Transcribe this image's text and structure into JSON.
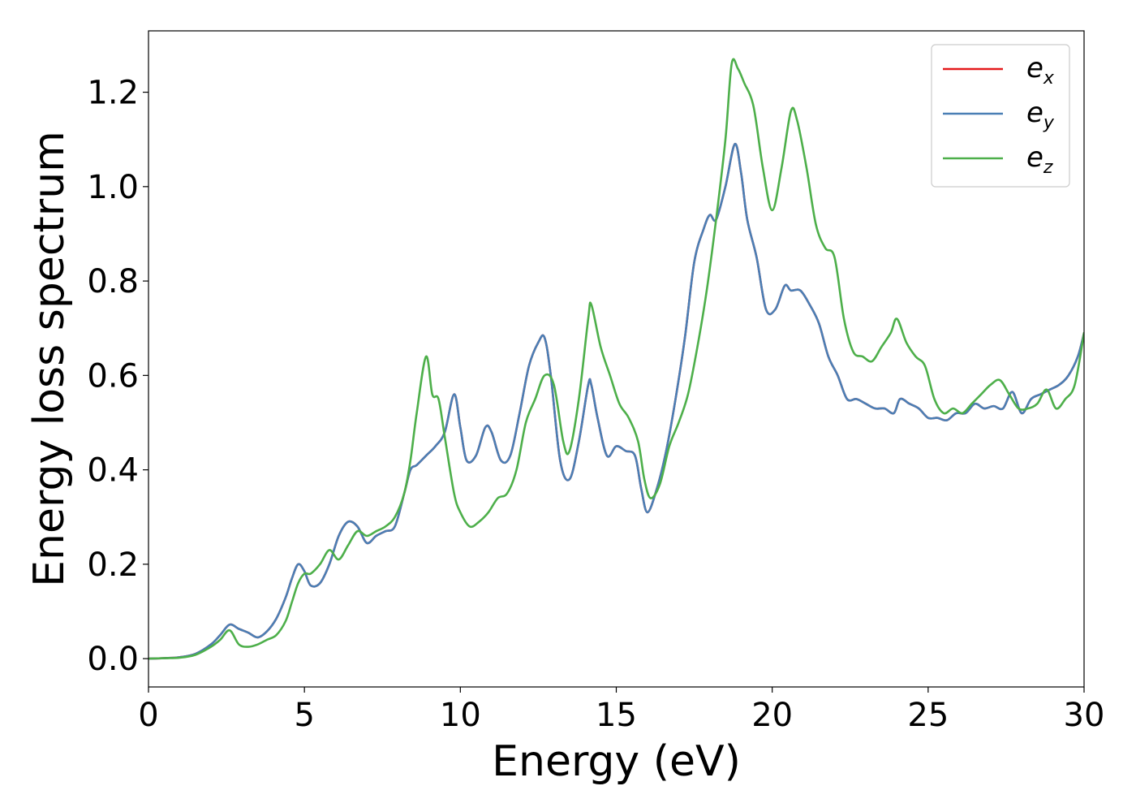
{
  "chart_data": {
    "type": "line",
    "title": "",
    "xlabel": "Energy (eV)",
    "ylabel": "Energy loss spectrum",
    "xlim": [
      0,
      30
    ],
    "ylim": [
      -0.06,
      1.33
    ],
    "xticks": [
      0,
      5,
      10,
      15,
      20,
      25,
      30
    ],
    "yticks": [
      0.0,
      0.2,
      0.4,
      0.6,
      0.8,
      1.0,
      1.2
    ],
    "xtick_labels": [
      "0",
      "5",
      "10",
      "15",
      "20",
      "25",
      "30"
    ],
    "ytick_labels": [
      "0.0",
      "0.2",
      "0.4",
      "0.6",
      "0.8",
      "1.0",
      "1.2"
    ],
    "grid": false,
    "legend_position": "top-right",
    "series": [
      {
        "name": "e_x",
        "legend_base": "e",
        "legend_sub": "x",
        "color": "#e41a1c",
        "x": [
          0,
          0.5,
          1.0,
          1.5,
          2.0,
          2.3,
          2.6,
          2.9,
          3.2,
          3.5,
          3.8,
          4.1,
          4.4,
          4.6,
          4.8,
          5.0,
          5.2,
          5.5,
          5.8,
          6.1,
          6.4,
          6.7,
          7.0,
          7.3,
          7.6,
          7.9,
          8.2,
          8.4,
          8.6,
          8.9,
          9.2,
          9.5,
          9.8,
          10.0,
          10.2,
          10.5,
          10.8,
          11.0,
          11.3,
          11.6,
          11.9,
          12.2,
          12.5,
          12.7,
          12.9,
          13.2,
          13.5,
          13.8,
          14.1,
          14.2,
          14.4,
          14.7,
          15.0,
          15.3,
          15.6,
          15.8,
          16.0,
          16.3,
          16.6,
          16.9,
          17.2,
          17.5,
          17.8,
          18.0,
          18.2,
          18.5,
          18.8,
          19.0,
          19.2,
          19.5,
          19.8,
          20.1,
          20.4,
          20.6,
          20.9,
          21.2,
          21.5,
          21.8,
          22.1,
          22.4,
          22.7,
          23.0,
          23.3,
          23.6,
          23.9,
          24.1,
          24.4,
          24.7,
          25.0,
          25.3,
          25.6,
          25.9,
          26.2,
          26.5,
          26.8,
          27.1,
          27.4,
          27.7,
          28.0,
          28.3,
          28.6,
          28.9,
          29.2,
          29.5,
          29.8,
          30.0
        ],
        "y": [
          0.0,
          0.001,
          0.003,
          0.01,
          0.03,
          0.05,
          0.072,
          0.063,
          0.055,
          0.045,
          0.058,
          0.085,
          0.13,
          0.17,
          0.2,
          0.185,
          0.155,
          0.16,
          0.2,
          0.26,
          0.29,
          0.28,
          0.245,
          0.26,
          0.27,
          0.28,
          0.35,
          0.4,
          0.41,
          0.43,
          0.45,
          0.48,
          0.56,
          0.49,
          0.42,
          0.43,
          0.49,
          0.48,
          0.42,
          0.43,
          0.52,
          0.62,
          0.67,
          0.68,
          0.6,
          0.42,
          0.38,
          0.46,
          0.58,
          0.58,
          0.51,
          0.43,
          0.45,
          0.44,
          0.43,
          0.36,
          0.31,
          0.36,
          0.44,
          0.55,
          0.68,
          0.84,
          0.91,
          0.94,
          0.93,
          1.0,
          1.09,
          1.03,
          0.93,
          0.85,
          0.74,
          0.74,
          0.79,
          0.78,
          0.78,
          0.75,
          0.71,
          0.64,
          0.6,
          0.55,
          0.55,
          0.54,
          0.53,
          0.53,
          0.52,
          0.55,
          0.54,
          0.53,
          0.51,
          0.51,
          0.505,
          0.52,
          0.52,
          0.54,
          0.53,
          0.535,
          0.53,
          0.565,
          0.52,
          0.55,
          0.56,
          0.57,
          0.58,
          0.6,
          0.64,
          0.69
        ]
      },
      {
        "name": "e_y",
        "legend_base": "e",
        "legend_sub": "y",
        "color": "#4a7fb5",
        "x": [
          0,
          0.5,
          1.0,
          1.5,
          2.0,
          2.3,
          2.6,
          2.9,
          3.2,
          3.5,
          3.8,
          4.1,
          4.4,
          4.6,
          4.8,
          5.0,
          5.2,
          5.5,
          5.8,
          6.1,
          6.4,
          6.7,
          7.0,
          7.3,
          7.6,
          7.9,
          8.2,
          8.4,
          8.6,
          8.9,
          9.2,
          9.5,
          9.8,
          10.0,
          10.2,
          10.5,
          10.8,
          11.0,
          11.3,
          11.6,
          11.9,
          12.2,
          12.5,
          12.7,
          12.9,
          13.2,
          13.5,
          13.8,
          14.1,
          14.2,
          14.4,
          14.7,
          15.0,
          15.3,
          15.6,
          15.8,
          16.0,
          16.3,
          16.6,
          16.9,
          17.2,
          17.5,
          17.8,
          18.0,
          18.2,
          18.5,
          18.8,
          19.0,
          19.2,
          19.5,
          19.8,
          20.1,
          20.4,
          20.6,
          20.9,
          21.2,
          21.5,
          21.8,
          22.1,
          22.4,
          22.7,
          23.0,
          23.3,
          23.6,
          23.9,
          24.1,
          24.4,
          24.7,
          25.0,
          25.3,
          25.6,
          25.9,
          26.2,
          26.5,
          26.8,
          27.1,
          27.4,
          27.7,
          28.0,
          28.3,
          28.6,
          28.9,
          29.2,
          29.5,
          29.8,
          30.0
        ],
        "y": [
          0.0,
          0.001,
          0.003,
          0.01,
          0.03,
          0.05,
          0.072,
          0.063,
          0.055,
          0.045,
          0.058,
          0.085,
          0.13,
          0.17,
          0.2,
          0.185,
          0.155,
          0.16,
          0.2,
          0.26,
          0.29,
          0.28,
          0.245,
          0.26,
          0.27,
          0.28,
          0.35,
          0.4,
          0.41,
          0.43,
          0.45,
          0.48,
          0.56,
          0.49,
          0.42,
          0.43,
          0.49,
          0.48,
          0.42,
          0.43,
          0.52,
          0.62,
          0.67,
          0.68,
          0.6,
          0.42,
          0.38,
          0.46,
          0.58,
          0.58,
          0.51,
          0.43,
          0.45,
          0.44,
          0.43,
          0.36,
          0.31,
          0.36,
          0.44,
          0.55,
          0.68,
          0.84,
          0.91,
          0.94,
          0.93,
          1.0,
          1.09,
          1.03,
          0.93,
          0.85,
          0.74,
          0.74,
          0.79,
          0.78,
          0.78,
          0.75,
          0.71,
          0.64,
          0.6,
          0.55,
          0.55,
          0.54,
          0.53,
          0.53,
          0.52,
          0.55,
          0.54,
          0.53,
          0.51,
          0.51,
          0.505,
          0.52,
          0.52,
          0.54,
          0.53,
          0.535,
          0.53,
          0.565,
          0.52,
          0.55,
          0.56,
          0.57,
          0.58,
          0.6,
          0.64,
          0.69
        ]
      },
      {
        "name": "e_z",
        "legend_base": "e",
        "legend_sub": "z",
        "color": "#4daf4a",
        "x": [
          0,
          0.5,
          1.0,
          1.5,
          2.0,
          2.3,
          2.6,
          2.9,
          3.2,
          3.5,
          3.8,
          4.1,
          4.4,
          4.6,
          4.8,
          5.0,
          5.2,
          5.5,
          5.8,
          6.1,
          6.4,
          6.7,
          7.0,
          7.3,
          7.6,
          7.9,
          8.2,
          8.4,
          8.6,
          8.9,
          9.1,
          9.3,
          9.5,
          9.8,
          10.0,
          10.3,
          10.6,
          10.9,
          11.2,
          11.5,
          11.8,
          12.1,
          12.4,
          12.7,
          13.0,
          13.3,
          13.5,
          13.8,
          14.1,
          14.2,
          14.5,
          14.8,
          15.1,
          15.4,
          15.7,
          15.9,
          16.1,
          16.4,
          16.7,
          17.0,
          17.3,
          17.6,
          17.9,
          18.2,
          18.5,
          18.7,
          18.9,
          19.1,
          19.4,
          19.7,
          20.0,
          20.3,
          20.6,
          20.8,
          21.1,
          21.4,
          21.7,
          22.0,
          22.3,
          22.6,
          22.9,
          23.2,
          23.5,
          23.8,
          24.0,
          24.3,
          24.6,
          24.9,
          25.2,
          25.5,
          25.8,
          26.1,
          26.4,
          26.7,
          27.0,
          27.3,
          27.6,
          27.9,
          28.2,
          28.5,
          28.8,
          29.1,
          29.4,
          29.7,
          30.0
        ],
        "y": [
          0.0,
          0.001,
          0.002,
          0.008,
          0.025,
          0.04,
          0.06,
          0.03,
          0.025,
          0.03,
          0.04,
          0.05,
          0.08,
          0.12,
          0.16,
          0.18,
          0.18,
          0.2,
          0.23,
          0.21,
          0.24,
          0.27,
          0.26,
          0.27,
          0.28,
          0.3,
          0.35,
          0.42,
          0.52,
          0.64,
          0.56,
          0.55,
          0.47,
          0.35,
          0.31,
          0.28,
          0.29,
          0.31,
          0.34,
          0.35,
          0.4,
          0.5,
          0.55,
          0.6,
          0.58,
          0.46,
          0.44,
          0.55,
          0.72,
          0.75,
          0.66,
          0.6,
          0.54,
          0.51,
          0.46,
          0.38,
          0.34,
          0.37,
          0.45,
          0.5,
          0.56,
          0.66,
          0.78,
          0.93,
          1.1,
          1.26,
          1.25,
          1.22,
          1.17,
          1.04,
          0.95,
          1.04,
          1.16,
          1.14,
          1.04,
          0.92,
          0.87,
          0.85,
          0.72,
          0.65,
          0.64,
          0.63,
          0.66,
          0.69,
          0.72,
          0.67,
          0.64,
          0.62,
          0.55,
          0.52,
          0.53,
          0.52,
          0.54,
          0.56,
          0.58,
          0.59,
          0.56,
          0.53,
          0.53,
          0.54,
          0.57,
          0.53,
          0.55,
          0.58,
          0.69
        ]
      }
    ]
  }
}
